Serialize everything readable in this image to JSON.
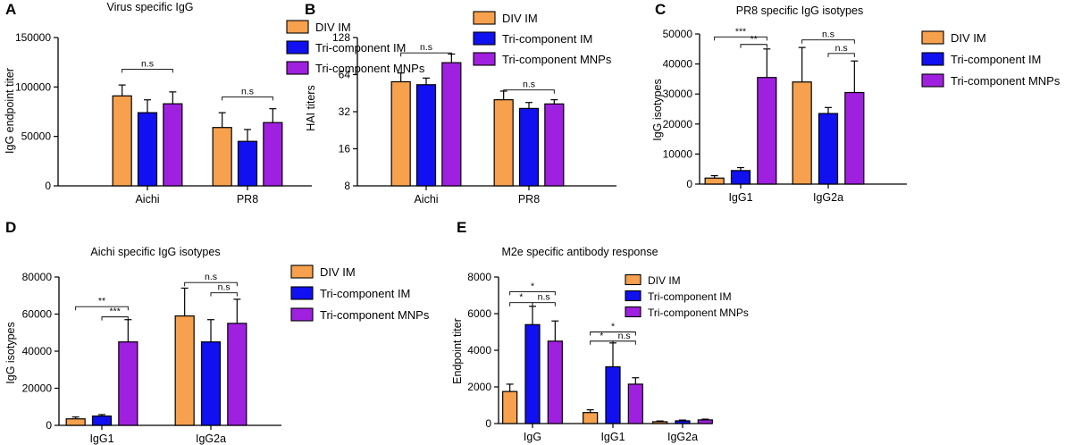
{
  "colors": {
    "DIV IM": "#F7A04E",
    "Tri-component IM": "#1010F0",
    "Tri-component MNPs": "#A020E0"
  },
  "chart_data": [
    {
      "panel": "A",
      "type": "bar",
      "title": "Virus specific IgG",
      "xlabel": "",
      "ylabel": "IgG endpoint titer",
      "scale": "linear",
      "ylim": [
        0,
        150000
      ],
      "yticks": [
        0,
        50000,
        100000,
        150000
      ],
      "ytick_labels": [
        "0",
        "50000",
        "100000",
        "150000"
      ],
      "categories": [
        "Aichi",
        "PR8"
      ],
      "series": [
        {
          "name": "DIV IM",
          "values": [
            91000,
            59000
          ],
          "errors": [
            11000,
            15000
          ]
        },
        {
          "name": "Tri-component IM",
          "values": [
            74000,
            45000
          ],
          "errors": [
            13000,
            12000
          ]
        },
        {
          "name": "Tri-component MNPs",
          "values": [
            83000,
            64000
          ],
          "errors": [
            12000,
            14000
          ]
        }
      ],
      "annotations": [
        {
          "text": "n.s",
          "group": 0,
          "from": 0,
          "to": 2,
          "y": 118000
        },
        {
          "text": "n.s",
          "group": 1,
          "from": 0,
          "to": 2,
          "y": 90000
        }
      ],
      "legend": [
        "DIV IM",
        "Tri-component IM",
        "Tri-component MNPs"
      ]
    },
    {
      "panel": "B",
      "type": "bar",
      "title": "",
      "xlabel": "",
      "ylabel": "HAI titers",
      "scale": "log2",
      "ylim": [
        8,
        128
      ],
      "yticks": [
        8,
        16,
        32,
        64,
        128
      ],
      "ytick_labels": [
        "8",
        "16",
        "32",
        "64",
        "128"
      ],
      "categories": [
        "Aichi",
        "PR8"
      ],
      "series": [
        {
          "name": "DIV IM",
          "values": [
            56,
            40
          ],
          "errors": [
            10,
            7
          ]
        },
        {
          "name": "Tri-component IM",
          "values": [
            53,
            34
          ],
          "errors": [
            7,
            4
          ]
        },
        {
          "name": "Tri-component MNPs",
          "values": [
            80,
            37
          ],
          "errors": [
            14,
            3
          ]
        }
      ],
      "annotations": [
        {
          "text": "n.s",
          "group": 0,
          "from": 0,
          "to": 2,
          "y": 96
        },
        {
          "text": "n.s",
          "group": 1,
          "from": 0,
          "to": 2,
          "y": 48
        }
      ],
      "legend": [
        "DIV IM",
        "Tri-component IM",
        "Tri-component MNPs"
      ]
    },
    {
      "panel": "C",
      "type": "bar",
      "title": "PR8 specific IgG isotypes",
      "xlabel": "",
      "ylabel": "IgG isotypes",
      "scale": "linear",
      "ylim": [
        0,
        50000
      ],
      "yticks": [
        0,
        10000,
        20000,
        30000,
        40000,
        50000
      ],
      "ytick_labels": [
        "0",
        "10000",
        "20000",
        "30000",
        "40000",
        "50000"
      ],
      "categories": [
        "IgG1",
        "IgG2a"
      ],
      "series": [
        {
          "name": "DIV IM",
          "values": [
            2000,
            34000
          ],
          "errors": [
            800,
            11500
          ]
        },
        {
          "name": "Tri-component IM",
          "values": [
            4500,
            23500
          ],
          "errors": [
            1000,
            2000
          ]
        },
        {
          "name": "Tri-component MNPs",
          "values": [
            35500,
            30500
          ],
          "errors": [
            9500,
            10500
          ]
        }
      ],
      "annotations": [
        {
          "text": "***",
          "group": 0,
          "from": 0,
          "to": 2,
          "y": 49000
        },
        {
          "text": "**",
          "group": 0,
          "from": 1,
          "to": 2,
          "y": 46500
        },
        {
          "text": "n.s",
          "group": 1,
          "from": 0,
          "to": 2,
          "y": 48000
        },
        {
          "text": "n.s",
          "group": 1,
          "from": 1,
          "to": 2,
          "y": 43500
        }
      ],
      "legend": [
        "DIV IM",
        "Tri-component IM",
        "Tri-component MNPs"
      ]
    },
    {
      "panel": "D",
      "type": "bar",
      "title": "Aichi specific IgG isotypes",
      "xlabel": "",
      "ylabel": "IgG isotypes",
      "scale": "linear",
      "ylim": [
        0,
        80000
      ],
      "yticks": [
        0,
        20000,
        40000,
        60000,
        80000
      ],
      "ytick_labels": [
        "0",
        "20000",
        "40000",
        "60000",
        "80000"
      ],
      "categories": [
        "IgG1",
        "IgG2a"
      ],
      "series": [
        {
          "name": "DIV IM",
          "values": [
            3500,
            59000
          ],
          "errors": [
            1000,
            15000
          ]
        },
        {
          "name": "Tri-component IM",
          "values": [
            5000,
            45000
          ],
          "errors": [
            800,
            12000
          ]
        },
        {
          "name": "Tri-component MNPs",
          "values": [
            45000,
            55000
          ],
          "errors": [
            12000,
            13000
          ]
        }
      ],
      "annotations": [
        {
          "text": "**",
          "group": 0,
          "from": 0,
          "to": 2,
          "y": 64000
        },
        {
          "text": "***",
          "group": 0,
          "from": 1,
          "to": 2,
          "y": 58500
        },
        {
          "text": "n.s",
          "group": 1,
          "from": 0,
          "to": 2,
          "y": 77000
        },
        {
          "text": "n.s",
          "group": 1,
          "from": 1,
          "to": 2,
          "y": 71500
        }
      ],
      "legend": [
        "DIV IM",
        "Tri-component IM",
        "Tri-component MNPs"
      ]
    },
    {
      "panel": "E",
      "type": "bar",
      "title": "M2e specific antibody response",
      "xlabel": "",
      "ylabel": "Endpoint titer",
      "scale": "linear",
      "ylim": [
        0,
        8000
      ],
      "yticks": [
        0,
        2000,
        4000,
        6000,
        8000
      ],
      "ytick_labels": [
        "0",
        "2000",
        "4000",
        "6000",
        "8000"
      ],
      "categories": [
        "IgG",
        "IgG1",
        "IgG2a"
      ],
      "series": [
        {
          "name": "DIV IM",
          "values": [
            1750,
            600,
            100
          ],
          "errors": [
            400,
            150,
            40
          ]
        },
        {
          "name": "Tri-component IM",
          "values": [
            5400,
            3100,
            150
          ],
          "errors": [
            1000,
            1300,
            40
          ]
        },
        {
          "name": "Tri-component MNPs",
          "values": [
            4500,
            2150,
            200
          ],
          "errors": [
            1100,
            350,
            40
          ]
        }
      ],
      "annotations": [
        {
          "text": "*",
          "group": 0,
          "from": 0,
          "to": 2,
          "y": 7200
        },
        {
          "text": "*",
          "group": 0,
          "from": 0,
          "to": 1,
          "y": 6600
        },
        {
          "text": "n.s",
          "group": 0,
          "from": 1,
          "to": 2,
          "y": 6600
        },
        {
          "text": "*",
          "group": 1,
          "from": 0,
          "to": 2,
          "y": 5000
        },
        {
          "text": "*",
          "group": 1,
          "from": 0,
          "to": 1,
          "y": 4500
        },
        {
          "text": "n.s",
          "group": 1,
          "from": 1,
          "to": 2,
          "y": 4500
        }
      ],
      "legend": [
        "DIV IM",
        "Tri-component IM",
        "Tri-component MNPs"
      ]
    }
  ]
}
